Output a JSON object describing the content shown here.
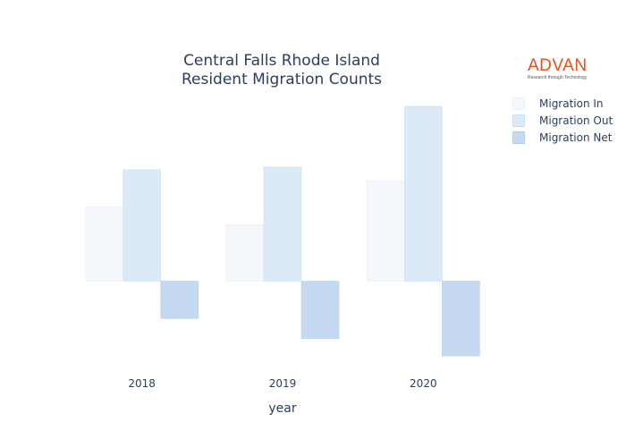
{
  "logo": {
    "word": "ADVAN",
    "tagline": "Research through Technology"
  },
  "colors": {
    "in": "#f4f8fd",
    "out": "#dce9f7",
    "net": "#c5daf0",
    "text": "#2a3f5f"
  },
  "chart_data": {
    "type": "bar",
    "title_line1": "Central Falls Rhode Island",
    "title_line2": "Resident Migration Counts",
    "xlabel": "year",
    "ylabel": "",
    "categories": [
      "2018",
      "2019",
      "2020"
    ],
    "series": [
      {
        "name": "Migration In",
        "values": [
          850,
          650,
          1150
        ]
      },
      {
        "name": "Migration Out",
        "values": [
          1280,
          1310,
          2010
        ]
      },
      {
        "name": "Migration Net",
        "values": [
          -430,
          -660,
          -860
        ]
      }
    ],
    "ylim": [
      -920,
      2050
    ],
    "grid": false,
    "legend": "top-right"
  }
}
